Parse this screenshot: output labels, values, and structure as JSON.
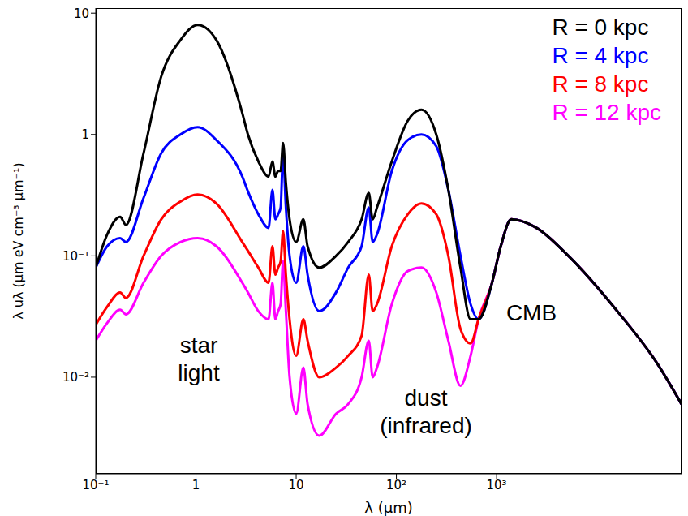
{
  "chart_data": {
    "type": "line",
    "log": true,
    "grid": false,
    "legend": "upper right",
    "xlabel": "λ (μm)",
    "ylabel": "λ uλ (μm eV cm⁻³ μm⁻¹)",
    "xlim": [
      0.1,
      70000
    ],
    "xticks": [
      {
        "value": 0.1,
        "label": "10⁻¹"
      },
      1,
      10,
      {
        "value": 100,
        "label": "10²"
      },
      {
        "value": 1000,
        "label": "10³"
      }
    ],
    "ylim": [
      0.0016,
      11
    ],
    "yticks": [
      {
        "value": 0.01,
        "label": "10⁻²"
      },
      {
        "value": 0.1,
        "label": "10⁻¹"
      },
      1,
      10
    ],
    "annotations": [
      "star light",
      "dust (infrared)",
      "CMB"
    ],
    "x": [
      0.1,
      0.13,
      0.175,
      0.2,
      0.3,
      0.45,
      0.7,
      1.04,
      1.6,
      2.9,
      3.3,
      4.2,
      5.3,
      5.8,
      6.2,
      6.6,
      7.0,
      7.4,
      7.9,
      8.6,
      10,
      11.8,
      13,
      17,
      25,
      33,
      45,
      53,
      58,
      64,
      90,
      130,
      178,
      250,
      330,
      436,
      550,
      660,
      900,
      1100,
      1400,
      2500,
      5200,
      16000,
      40000,
      70000
    ],
    "series": [
      {
        "name": "R = 0 kpc",
        "color": "#000000",
        "values": [
          0.08,
          0.15,
          0.21,
          0.18,
          0.7,
          3,
          6,
          8,
          6,
          1.5,
          1.0,
          0.6,
          0.45,
          0.6,
          0.45,
          0.5,
          0.5,
          0.85,
          0.4,
          0.2,
          0.13,
          0.2,
          0.12,
          0.08,
          0.1,
          0.13,
          0.2,
          0.33,
          0.2,
          0.25,
          0.6,
          1.3,
          1.6,
          1.0,
          0.35,
          0.08,
          0.03,
          0.03,
          0.06,
          0.12,
          0.2,
          0.17,
          0.1,
          0.035,
          0.013,
          0.006
        ]
      },
      {
        "name": "R = 4 kpc",
        "color": "#0000ff",
        "values": [
          0.08,
          0.12,
          0.14,
          0.13,
          0.3,
          0.7,
          1.0,
          1.15,
          0.9,
          0.45,
          0.34,
          0.22,
          0.17,
          0.35,
          0.2,
          0.22,
          0.25,
          0.7,
          0.25,
          0.1,
          0.06,
          0.12,
          0.07,
          0.035,
          0.05,
          0.08,
          0.12,
          0.25,
          0.13,
          0.15,
          0.5,
          0.9,
          1.0,
          0.8,
          0.35,
          0.1,
          0.04,
          0.03,
          0.06,
          0.12,
          0.2,
          0.17,
          0.1,
          0.035,
          0.013,
          0.006
        ]
      },
      {
        "name": "R = 8 kpc",
        "color": "#ff0000",
        "values": [
          0.027,
          0.038,
          0.05,
          0.045,
          0.1,
          0.2,
          0.28,
          0.32,
          0.27,
          0.13,
          0.11,
          0.08,
          0.06,
          0.12,
          0.07,
          0.08,
          0.09,
          0.16,
          0.07,
          0.03,
          0.015,
          0.03,
          0.02,
          0.01,
          0.012,
          0.015,
          0.022,
          0.07,
          0.035,
          0.04,
          0.12,
          0.22,
          0.27,
          0.22,
          0.1,
          0.025,
          0.019,
          0.03,
          0.06,
          0.12,
          0.2,
          0.17,
          0.1,
          0.035,
          0.013,
          0.006
        ]
      },
      {
        "name": "R = 12 kpc",
        "color": "#ff00ff",
        "values": [
          0.02,
          0.028,
          0.036,
          0.033,
          0.06,
          0.1,
          0.13,
          0.14,
          0.12,
          0.06,
          0.05,
          0.035,
          0.03,
          0.06,
          0.03,
          0.035,
          0.04,
          0.09,
          0.035,
          0.01,
          0.005,
          0.012,
          0.006,
          0.0033,
          0.005,
          0.006,
          0.01,
          0.02,
          0.01,
          0.012,
          0.04,
          0.075,
          0.08,
          0.05,
          0.02,
          0.0085,
          0.015,
          0.03,
          0.06,
          0.12,
          0.2,
          0.17,
          0.1,
          0.035,
          0.013,
          0.006
        ]
      }
    ]
  }
}
